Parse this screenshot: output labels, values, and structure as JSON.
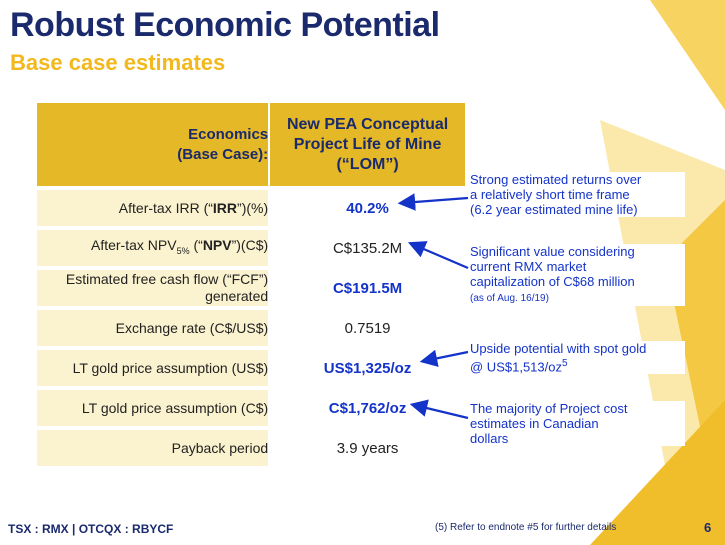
{
  "header": {
    "title": "Robust Economic Potential",
    "subtitle": "Base case estimates"
  },
  "table": {
    "header_left_line1": "Economics",
    "header_left_line2": "(Base Case):",
    "header_right_line1": "New PEA Conceptual",
    "header_right_line2": "Project Life of Mine",
    "header_right_line3": "(“LOM”)",
    "rows": [
      {
        "label_pre": "After-tax IRR (“",
        "label_bold": "IRR",
        "label_post": "”)(%)",
        "value": "40.2%"
      },
      {
        "label_pre": "After-tax NPV",
        "label_sub": "5%",
        "label_mid": " (“",
        "label_bold": "NPV",
        "label_post": "”)(C$)",
        "value": "C$135.2M"
      },
      {
        "label_line1": "Estimated free cash flow (“FCF”)",
        "label_line2": "generated",
        "value": "C$191.5M"
      },
      {
        "label": "Exchange rate (C$/US$)",
        "value": "0.7519"
      },
      {
        "label": "LT gold price assumption (US$)",
        "value": "US$1,325/oz"
      },
      {
        "label": "LT gold price assumption (C$)",
        "value": "C$1,762/oz"
      },
      {
        "label": "Payback period",
        "value": "3.9 years"
      }
    ]
  },
  "notes": {
    "irr_line1": "Strong estimated returns over",
    "irr_line2": "a relatively short time frame",
    "irr_line3": "(6.2 year estimated mine life)",
    "npv_line1": "Significant value considering",
    "npv_line2": "current RMX market",
    "npv_line3": "capitalization of C$68 million",
    "npv_line4": "(as of Aug. 16/19)",
    "gold_us_line1": "Upside potential with spot gold",
    "gold_us_line2": "@ US$1,513/oz",
    "gold_us_sup": "5",
    "gold_c_line1": "The majority of Project cost",
    "gold_c_line2": "estimates in Canadian",
    "gold_c_line3": "dollars"
  },
  "footer": {
    "ticker": "TSX : RMX | OTCQX : RBYCF",
    "endnote": "(5) Refer to endnote #5 for further details",
    "page_number": "6"
  },
  "colors": {
    "navy": "#1a2a6c",
    "gold": "#f2b81c",
    "header_fill": "#e4b826",
    "row_fill": "#fbf3cf",
    "highlight_blue": "#1433c8"
  }
}
